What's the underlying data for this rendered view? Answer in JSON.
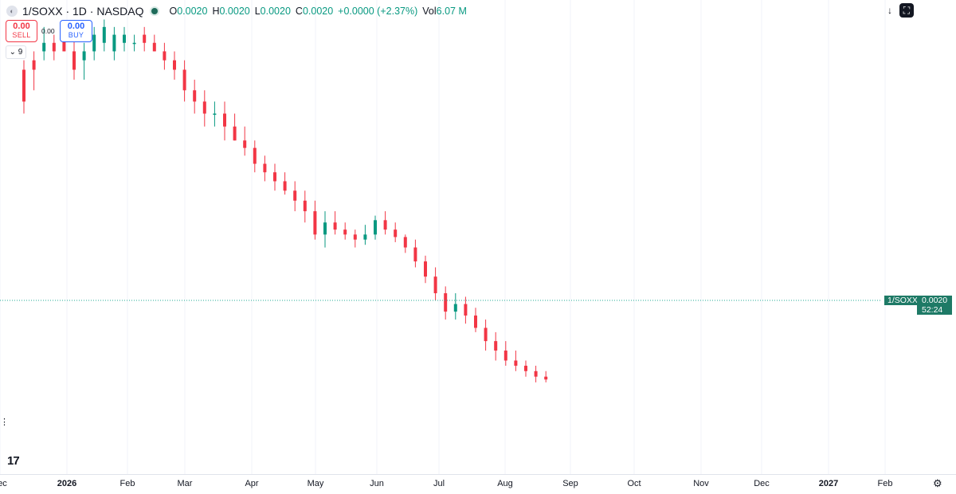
{
  "legend": {
    "symbol": "1/SOXX · 1D · NASDAQ",
    "open_label": "O",
    "open": "0.0020",
    "high_label": "H",
    "high": "0.0020",
    "low_label": "L",
    "low": "0.0020",
    "close_label": "C",
    "close": "0.0020",
    "change": "+0.0000 (+2.37%)",
    "vol_label": "Vol",
    "volume": "6.07 M"
  },
  "trade": {
    "sell_price": "0.00",
    "sell_label": "SELL",
    "buy_price": "0.00",
    "buy_label": "BUY",
    "spread": "0.00"
  },
  "indicators_count": "9",
  "price_tag": {
    "symbol": "1/SOXX",
    "price": "0.0020",
    "countdown": "52:24"
  },
  "logo": "17",
  "icons": [
    "logo-placeholder-icon",
    "chevron-down-icon",
    "arrow-down-icon",
    "fullscreen-icon",
    "gear-icon",
    "tradingview-logo-icon"
  ],
  "colors": {
    "up": "#089981",
    "down": "#f23645",
    "price_line": "#22ab94",
    "price_tag": "#1e7a66"
  },
  "chart_data": {
    "type": "candlestick",
    "x_axis_labels": [
      "ec",
      "2026",
      "Feb",
      "Mar",
      "Apr",
      "May",
      "Jun",
      "Jul",
      "Aug",
      "Sep",
      "Oct",
      "Nov",
      "Dec",
      "2027",
      "Feb"
    ],
    "bold_labels": [
      "2026",
      "2027"
    ],
    "grid": true,
    "current_price_line": true,
    "candles": [
      [
        0,
        0.18,
        0.15,
        0.19,
        0.14
      ],
      [
        1,
        0.19,
        0.18,
        0.2,
        0.16
      ],
      [
        2,
        0.2,
        0.21,
        0.23,
        0.19
      ],
      [
        3,
        0.21,
        0.2,
        0.22,
        0.19
      ],
      [
        4,
        0.22,
        0.2,
        0.23,
        0.2
      ],
      [
        5,
        0.2,
        0.18,
        0.22,
        0.17
      ],
      [
        6,
        0.19,
        0.2,
        0.21,
        0.17
      ],
      [
        7,
        0.2,
        0.22,
        0.23,
        0.19
      ],
      [
        8,
        0.21,
        0.23,
        0.24,
        0.2
      ],
      [
        9,
        0.2,
        0.22,
        0.23,
        0.19
      ],
      [
        10,
        0.21,
        0.22,
        0.23,
        0.2
      ],
      [
        11,
        0.21,
        0.21,
        0.22,
        0.2
      ],
      [
        12,
        0.22,
        0.21,
        0.23,
        0.2
      ],
      [
        13,
        0.21,
        0.2,
        0.22,
        0.2
      ],
      [
        14,
        0.2,
        0.19,
        0.21,
        0.18
      ],
      [
        15,
        0.19,
        0.18,
        0.2,
        0.17
      ],
      [
        16,
        0.18,
        0.16,
        0.19,
        0.15
      ],
      [
        17,
        0.16,
        0.15,
        0.17,
        0.14
      ],
      [
        18,
        0.15,
        0.14,
        0.16,
        0.13
      ],
      [
        19,
        0.14,
        0.14,
        0.15,
        0.13
      ],
      [
        20,
        0.14,
        0.13,
        0.15,
        0.12
      ],
      [
        21,
        0.13,
        0.12,
        0.14,
        0.12
      ],
      [
        22,
        0.12,
        0.115,
        0.13,
        0.11
      ],
      [
        23,
        0.115,
        0.105,
        0.12,
        0.1
      ],
      [
        24,
        0.105,
        0.1,
        0.11,
        0.095
      ],
      [
        25,
        0.1,
        0.095,
        0.105,
        0.09
      ],
      [
        26,
        0.095,
        0.09,
        0.1,
        0.088
      ],
      [
        27,
        0.09,
        0.085,
        0.095,
        0.08
      ],
      [
        28,
        0.085,
        0.08,
        0.09,
        0.075
      ],
      [
        29,
        0.08,
        0.07,
        0.085,
        0.068
      ],
      [
        30,
        0.07,
        0.075,
        0.08,
        0.065
      ],
      [
        31,
        0.075,
        0.072,
        0.08,
        0.07
      ],
      [
        32,
        0.072,
        0.07,
        0.075,
        0.068
      ],
      [
        33,
        0.07,
        0.068,
        0.072,
        0.065
      ],
      [
        34,
        0.068,
        0.07,
        0.074,
        0.066
      ],
      [
        35,
        0.07,
        0.076,
        0.078,
        0.068
      ],
      [
        36,
        0.076,
        0.072,
        0.08,
        0.07
      ],
      [
        37,
        0.072,
        0.069,
        0.075,
        0.067
      ],
      [
        38,
        0.069,
        0.065,
        0.07,
        0.063
      ],
      [
        39,
        0.065,
        0.06,
        0.068,
        0.058
      ],
      [
        40,
        0.06,
        0.055,
        0.062,
        0.053
      ],
      [
        41,
        0.055,
        0.05,
        0.058,
        0.048
      ],
      [
        42,
        0.05,
        0.045,
        0.052,
        0.043
      ],
      [
        43,
        0.045,
        0.047,
        0.05,
        0.043
      ],
      [
        44,
        0.047,
        0.044,
        0.049,
        0.042
      ],
      [
        45,
        0.044,
        0.041,
        0.046,
        0.04
      ],
      [
        46,
        0.041,
        0.038,
        0.043,
        0.036
      ],
      [
        47,
        0.038,
        0.036,
        0.04,
        0.034
      ],
      [
        48,
        0.036,
        0.034,
        0.038,
        0.033
      ],
      [
        49,
        0.034,
        0.033,
        0.036,
        0.032
      ],
      [
        50,
        0.033,
        0.032,
        0.034,
        0.031
      ],
      [
        51,
        0.032,
        0.031,
        0.033,
        0.03
      ],
      [
        52,
        0.031,
        0.0305,
        0.032,
        0.03
      ]
    ]
  }
}
